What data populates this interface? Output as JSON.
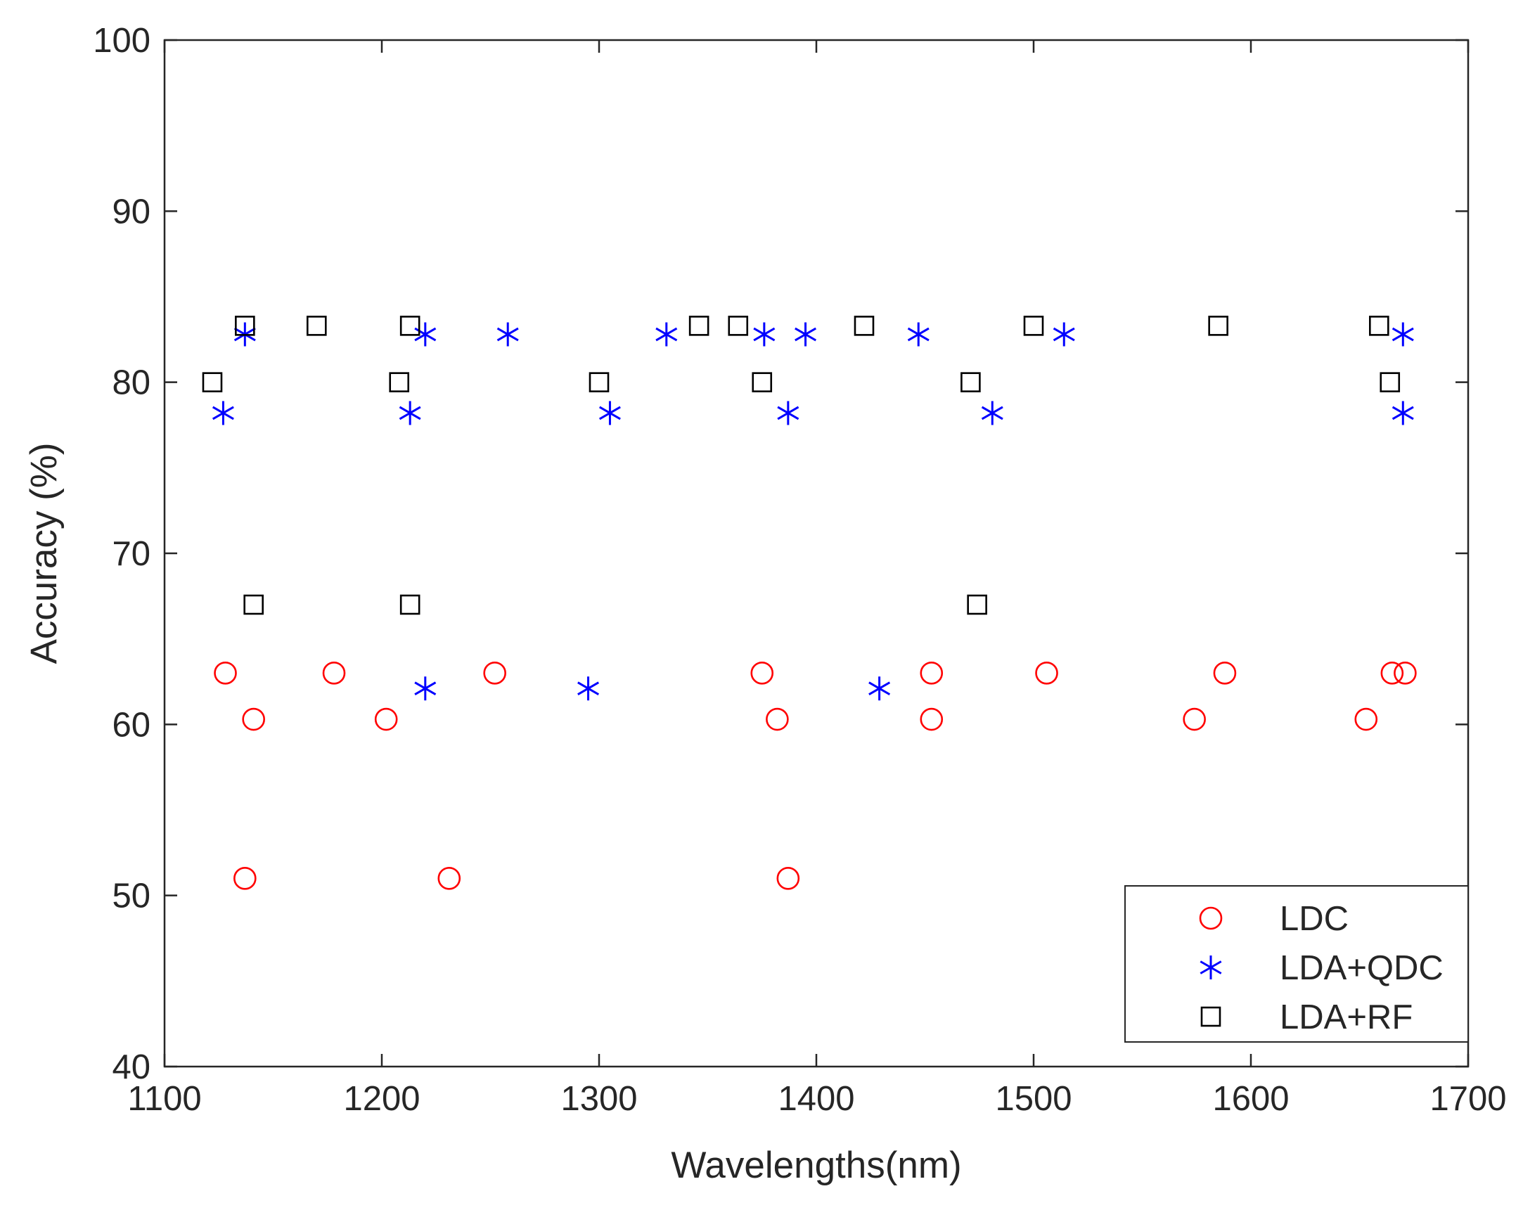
{
  "chart_data": {
    "type": "scatter",
    "title": "",
    "xlabel": "Wavelengths(nm)",
    "ylabel": "Accuracy (%)",
    "xlim": [
      1100,
      1700
    ],
    "ylim": [
      40,
      100
    ],
    "xticks": [
      1100,
      1200,
      1300,
      1400,
      1500,
      1600,
      1700
    ],
    "yticks": [
      40,
      50,
      60,
      70,
      80,
      90,
      100
    ],
    "grid": false,
    "legend_position": "bottom-right",
    "series": [
      {
        "name": "LDC",
        "marker": "circle",
        "color": "#ff0000",
        "points": [
          [
            1128,
            63
          ],
          [
            1141,
            60.3
          ],
          [
            1137,
            51
          ],
          [
            1178,
            63
          ],
          [
            1202,
            60.3
          ],
          [
            1231,
            51
          ],
          [
            1252,
            63
          ],
          [
            1375,
            63
          ],
          [
            1382,
            60.3
          ],
          [
            1387,
            51
          ],
          [
            1453,
            63
          ],
          [
            1453,
            60.3
          ],
          [
            1506,
            63
          ],
          [
            1574,
            60.3
          ],
          [
            1588,
            63
          ],
          [
            1653,
            60.3
          ],
          [
            1665,
            63
          ],
          [
            1671,
            63
          ]
        ]
      },
      {
        "name": "LDA+QDC",
        "marker": "asterisk",
        "color": "#0000ff",
        "points": [
          [
            1127,
            78.2
          ],
          [
            1137,
            82.8
          ],
          [
            1213,
            78.2
          ],
          [
            1220,
            82.8
          ],
          [
            1220,
            62.1
          ],
          [
            1258,
            82.8
          ],
          [
            1295,
            62.1
          ],
          [
            1305,
            78.2
          ],
          [
            1331,
            82.8
          ],
          [
            1376,
            82.8
          ],
          [
            1387,
            78.2
          ],
          [
            1395,
            82.8
          ],
          [
            1429,
            62.1
          ],
          [
            1447,
            82.8
          ],
          [
            1481,
            78.2
          ],
          [
            1514,
            82.8
          ],
          [
            1670,
            82.8
          ],
          [
            1670,
            78.2
          ]
        ]
      },
      {
        "name": "LDA+RF",
        "marker": "square",
        "color": "#000000",
        "points": [
          [
            1122,
            80
          ],
          [
            1137,
            83.3
          ],
          [
            1141,
            67
          ],
          [
            1170,
            83.3
          ],
          [
            1208,
            80
          ],
          [
            1213,
            83.3
          ],
          [
            1213,
            67
          ],
          [
            1300,
            80
          ],
          [
            1346,
            83.3
          ],
          [
            1364,
            83.3
          ],
          [
            1375,
            80
          ],
          [
            1422,
            83.3
          ],
          [
            1471,
            80
          ],
          [
            1474,
            67
          ],
          [
            1500,
            83.3
          ],
          [
            1585,
            83.3
          ],
          [
            1659,
            83.3
          ],
          [
            1664,
            80
          ]
        ]
      }
    ]
  }
}
